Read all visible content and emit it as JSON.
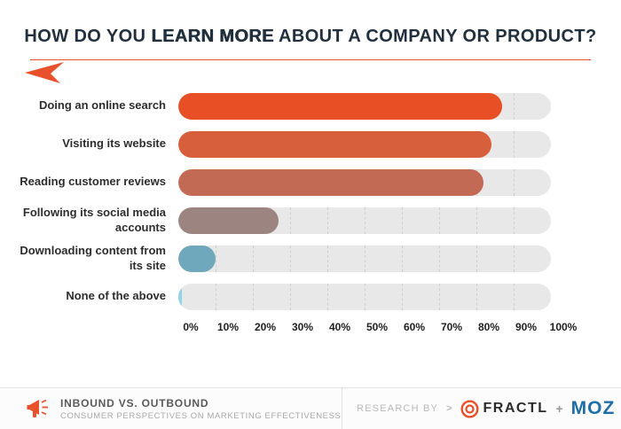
{
  "title": {
    "prefix": "How do you ",
    "emphasis": "learn more",
    "suffix": " about a company or product?"
  },
  "accent_color": "#e8512b",
  "track_color": "#e8e8e8",
  "chart_data": {
    "type": "bar",
    "orientation": "horizontal",
    "title": "How do you learn more about a company or product?",
    "categories": [
      "Doing an online search",
      "Visiting its website",
      "Reading customer reviews",
      "Following its social media accounts",
      "Downloading content from its site",
      "None of the above"
    ],
    "values": [
      87,
      84,
      82,
      27,
      10,
      1
    ],
    "bar_colors": [
      "#e84f25",
      "#d75f3c",
      "#c36a54",
      "#9c8481",
      "#6fa7bd",
      "#8ed4e4"
    ],
    "xlim": [
      0,
      100
    ],
    "x_ticks": [
      "0%",
      "10%",
      "20%",
      "30%",
      "40%",
      "50%",
      "60%",
      "70%",
      "80%",
      "90%",
      "100%"
    ],
    "grid": "dashed-vertical",
    "legend": "none"
  },
  "footer": {
    "brand_title": "INBOUND VS. OUTBOUND",
    "brand_subtitle": "CONSUMER PERSPECTIVES ON MARKETING EFFECTIVENESS",
    "research_by": "RESEARCH BY",
    "research_arrow": ">",
    "fractl_label": "FRACTL",
    "plus": "+",
    "moz_label": "MOZ",
    "moz_color": "#1d6fa5"
  }
}
